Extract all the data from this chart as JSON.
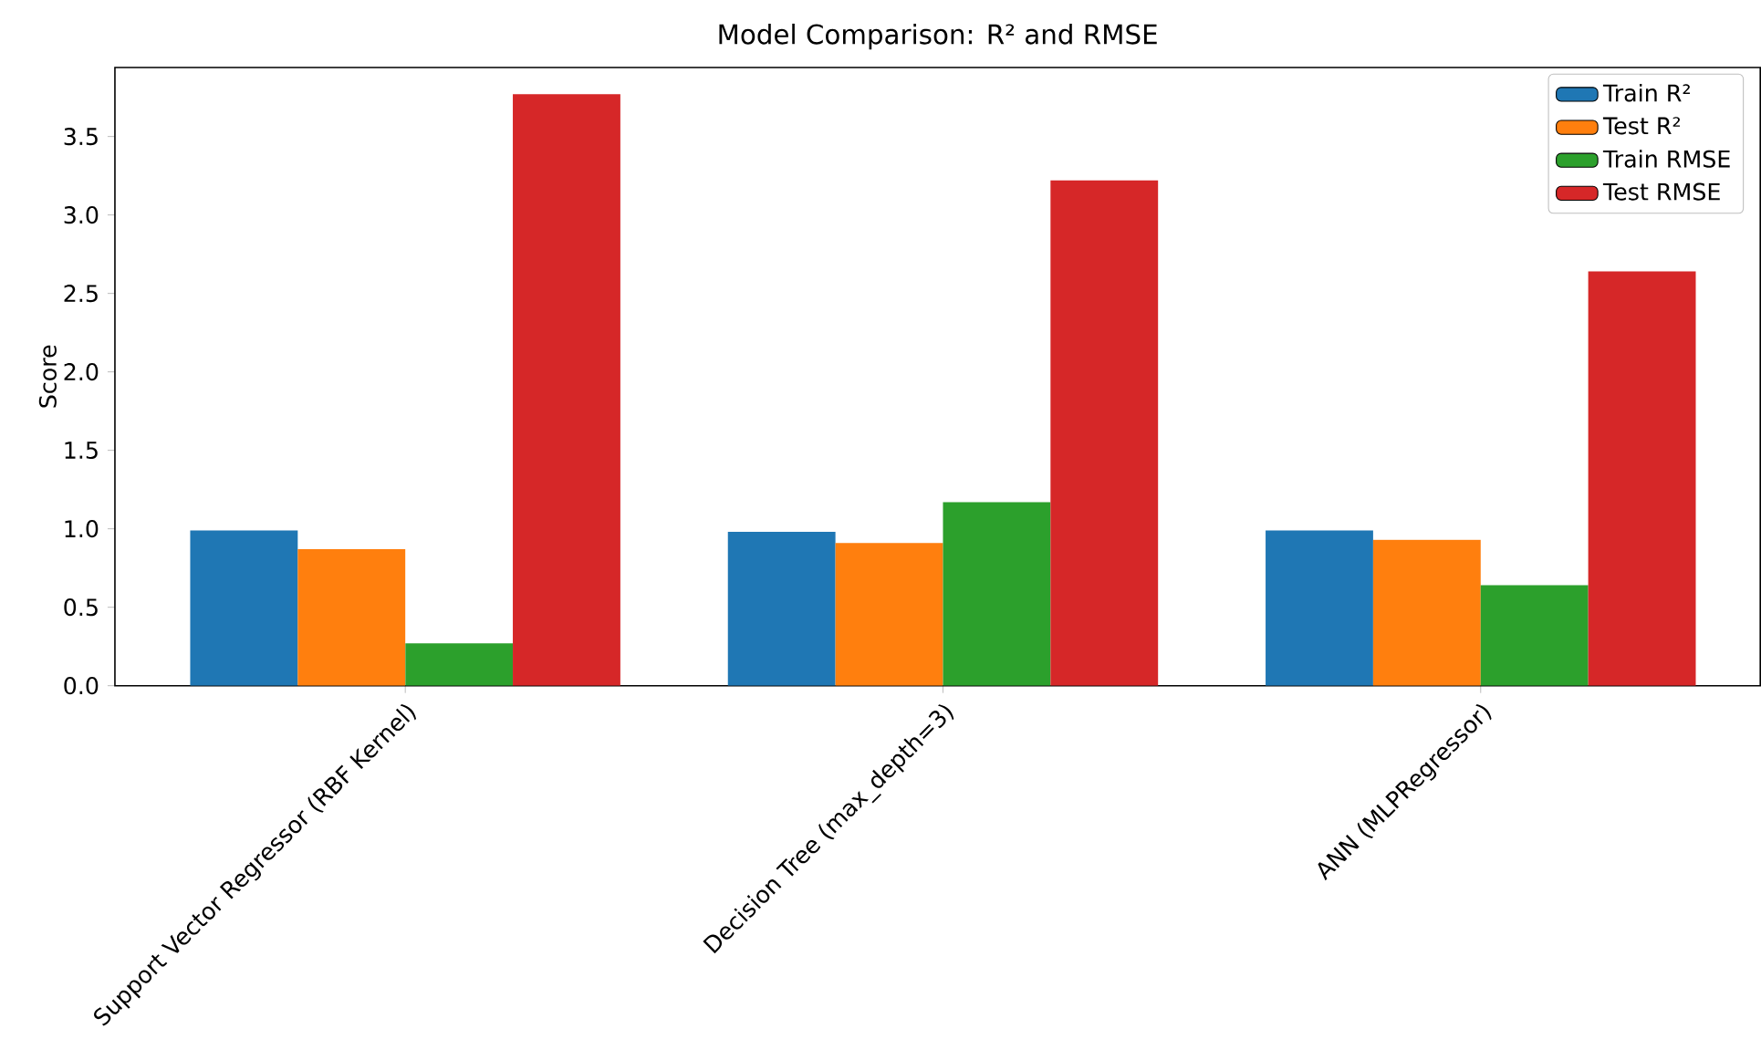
{
  "chart_data": {
    "type": "bar",
    "title": "Model Comparison: R² and RMSE",
    "ylabel": "Score",
    "categories": [
      "Support Vector Regressor (RBF Kernel)",
      "Decision Tree (max_depth=3)",
      "ANN (MLPRegressor)"
    ],
    "series": [
      {
        "name": "Train R²",
        "color": "#1f77b4",
        "values": [
          0.99,
          0.98,
          0.99
        ]
      },
      {
        "name": "Test R²",
        "color": "#ff7f0e",
        "values": [
          0.87,
          0.91,
          0.93
        ]
      },
      {
        "name": "Train RMSE",
        "color": "#2ca02c",
        "values": [
          0.27,
          1.17,
          0.64
        ]
      },
      {
        "name": "Test RMSE",
        "color": "#d62728",
        "values": [
          3.77,
          3.22,
          2.64
        ]
      }
    ],
    "ylim": [
      0,
      3.94
    ],
    "yticks": [
      {
        "value": 0,
        "label": "0.0"
      },
      0.5,
      {
        "value": 1,
        "label": "1.0"
      },
      1.5,
      {
        "value": 2,
        "label": "2.0"
      },
      2.5,
      {
        "value": 3,
        "label": "3.0"
      },
      3.5
    ],
    "legend": "top right",
    "grid": false
  }
}
